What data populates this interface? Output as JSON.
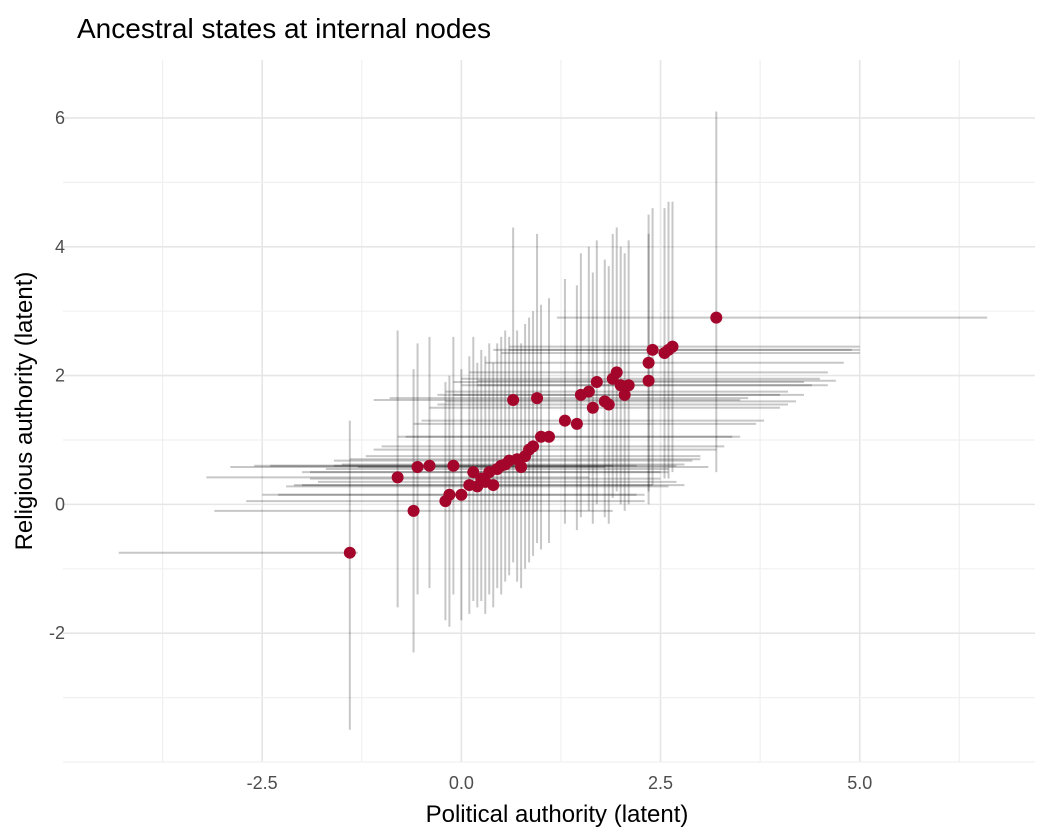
{
  "chart_data": {
    "type": "scatter",
    "title": "Ancestral states at internal nodes",
    "xlabel": "Political authority (latent)",
    "ylabel": "Religious authority (latent)",
    "xlim": [
      -5,
      7.2
    ],
    "ylim": [
      -4,
      6.9
    ],
    "x_ticks": [
      -2.5,
      0.0,
      2.5,
      5.0
    ],
    "x_tick_labels": [
      "-2.5",
      "0.0",
      "2.5",
      "5.0"
    ],
    "y_ticks": [
      -2,
      0,
      2,
      4,
      6
    ],
    "y_tick_labels": [
      "-2",
      "0",
      "2",
      "4",
      "6"
    ],
    "grid": true,
    "colors": {
      "point": "#a3062a",
      "error_bar": "#000000",
      "grid": "#e6e6e6"
    },
    "points": [
      {
        "x": -1.4,
        "y": -0.75,
        "xlo": -4.3,
        "xhi": -1.3,
        "ylo": -3.5,
        "yhi": 1.3
      },
      {
        "x": -0.8,
        "y": 0.42,
        "xlo": -3.2,
        "xhi": 1.6,
        "ylo": -1.6,
        "yhi": 2.7
      },
      {
        "x": -0.6,
        "y": -0.1,
        "xlo": -3.1,
        "xhi": 1.9,
        "ylo": -2.3,
        "yhi": 2.1
      },
      {
        "x": -0.55,
        "y": 0.58,
        "xlo": -2.9,
        "xhi": 1.8,
        "ylo": -1.4,
        "yhi": 2.5
      },
      {
        "x": -0.4,
        "y": 0.6,
        "xlo": -2.6,
        "xhi": 1.9,
        "ylo": -1.3,
        "yhi": 2.6
      },
      {
        "x": -0.2,
        "y": 0.05,
        "xlo": -2.7,
        "xhi": 2.3,
        "ylo": -1.8,
        "yhi": 1.9
      },
      {
        "x": -0.1,
        "y": 0.6,
        "xlo": -2.4,
        "xhi": 2.2,
        "ylo": -1.4,
        "yhi": 2.6
      },
      {
        "x": -0.15,
        "y": 0.15,
        "xlo": -2.5,
        "xhi": 2.2,
        "ylo": -1.9,
        "yhi": 2.0
      },
      {
        "x": 0.0,
        "y": 0.15,
        "xlo": -2.3,
        "xhi": 2.3,
        "ylo": -1.8,
        "yhi": 2.1
      },
      {
        "x": 0.1,
        "y": 0.3,
        "xlo": -2.1,
        "xhi": 2.4,
        "ylo": -1.7,
        "yhi": 2.3
      },
      {
        "x": 0.15,
        "y": 0.5,
        "xlo": -2.0,
        "xhi": 2.5,
        "ylo": -1.5,
        "yhi": 2.6
      },
      {
        "x": 0.2,
        "y": 0.28,
        "xlo": -2.2,
        "xhi": 2.6,
        "ylo": -1.6,
        "yhi": 2.2
      },
      {
        "x": 0.25,
        "y": 0.4,
        "xlo": -1.9,
        "xhi": 2.5,
        "ylo": -1.5,
        "yhi": 2.4
      },
      {
        "x": 0.3,
        "y": 0.35,
        "xlo": -1.8,
        "xhi": 2.7,
        "ylo": -1.7,
        "yhi": 2.3
      },
      {
        "x": 0.35,
        "y": 0.5,
        "xlo": -1.9,
        "xhi": 2.6,
        "ylo": -1.4,
        "yhi": 2.5
      },
      {
        "x": 0.4,
        "y": 0.3,
        "xlo": -2.0,
        "xhi": 2.8,
        "ylo": -1.6,
        "yhi": 2.2
      },
      {
        "x": 0.45,
        "y": 0.55,
        "xlo": -1.7,
        "xhi": 2.6,
        "ylo": -1.3,
        "yhi": 2.5
      },
      {
        "x": 0.5,
        "y": 0.6,
        "xlo": -1.6,
        "xhi": 2.7,
        "ylo": -1.4,
        "yhi": 2.6
      },
      {
        "x": 0.55,
        "y": 0.62,
        "xlo": -1.5,
        "xhi": 2.8,
        "ylo": -1.2,
        "yhi": 2.7
      },
      {
        "x": 0.6,
        "y": 0.68,
        "xlo": -1.6,
        "xhi": 2.9,
        "ylo": -1.1,
        "yhi": 2.6
      },
      {
        "x": 0.65,
        "y": 1.62,
        "xlo": -1.1,
        "xhi": 3.5,
        "ylo": -0.9,
        "yhi": 4.3
      },
      {
        "x": 0.7,
        "y": 0.7,
        "xlo": -1.4,
        "xhi": 3.0,
        "ylo": -1.2,
        "yhi": 2.7
      },
      {
        "x": 0.75,
        "y": 0.58,
        "xlo": -1.3,
        "xhi": 3.1,
        "ylo": -1.3,
        "yhi": 2.5
      },
      {
        "x": 0.8,
        "y": 0.75,
        "xlo": -1.2,
        "xhi": 3.0,
        "ylo": -1.0,
        "yhi": 2.8
      },
      {
        "x": 0.85,
        "y": 0.85,
        "xlo": -1.1,
        "xhi": 3.2,
        "ylo": -0.9,
        "yhi": 2.9
      },
      {
        "x": 0.9,
        "y": 0.9,
        "xlo": -1.0,
        "xhi": 3.3,
        "ylo": -0.8,
        "yhi": 3.0
      },
      {
        "x": 0.95,
        "y": 1.65,
        "xlo": -0.9,
        "xhi": 3.6,
        "ylo": -0.6,
        "yhi": 4.2
      },
      {
        "x": 1.0,
        "y": 1.05,
        "xlo": -0.8,
        "xhi": 3.4,
        "ylo": -0.7,
        "yhi": 3.1
      },
      {
        "x": 1.1,
        "y": 1.05,
        "xlo": -0.7,
        "xhi": 3.5,
        "ylo": -0.6,
        "yhi": 3.2
      },
      {
        "x": 1.3,
        "y": 1.3,
        "xlo": -0.5,
        "xhi": 3.8,
        "ylo": -0.3,
        "yhi": 3.5
      },
      {
        "x": 1.45,
        "y": 1.25,
        "xlo": -0.6,
        "xhi": 3.7,
        "ylo": -0.4,
        "yhi": 3.4
      },
      {
        "x": 1.5,
        "y": 1.7,
        "xlo": -0.3,
        "xhi": 4.0,
        "ylo": -0.2,
        "yhi": 3.9
      },
      {
        "x": 1.6,
        "y": 1.75,
        "xlo": -0.2,
        "xhi": 4.1,
        "ylo": -0.1,
        "yhi": 4.0
      },
      {
        "x": 1.65,
        "y": 1.5,
        "xlo": -0.4,
        "xhi": 4.0,
        "ylo": -0.3,
        "yhi": 3.6
      },
      {
        "x": 1.7,
        "y": 1.9,
        "xlo": -0.1,
        "xhi": 4.3,
        "ylo": 0.0,
        "yhi": 4.1
      },
      {
        "x": 1.8,
        "y": 1.6,
        "xlo": -0.2,
        "xhi": 4.2,
        "ylo": -0.2,
        "yhi": 3.8
      },
      {
        "x": 1.85,
        "y": 1.55,
        "xlo": -0.3,
        "xhi": 4.1,
        "ylo": -0.3,
        "yhi": 3.7
      },
      {
        "x": 1.9,
        "y": 1.95,
        "xlo": 0.0,
        "xhi": 4.5,
        "ylo": 0.1,
        "yhi": 4.2
      },
      {
        "x": 1.95,
        "y": 2.05,
        "xlo": 0.1,
        "xhi": 4.6,
        "ylo": 0.2,
        "yhi": 4.3
      },
      {
        "x": 2.0,
        "y": 1.85,
        "xlo": 0.0,
        "xhi": 4.4,
        "ylo": 0.0,
        "yhi": 4.0
      },
      {
        "x": 2.05,
        "y": 1.7,
        "xlo": -0.1,
        "xhi": 4.3,
        "ylo": -0.1,
        "yhi": 3.9
      },
      {
        "x": 2.1,
        "y": 1.85,
        "xlo": 0.2,
        "xhi": 4.6,
        "ylo": 0.0,
        "yhi": 4.1
      },
      {
        "x": 2.35,
        "y": 2.2,
        "xlo": 0.3,
        "xhi": 4.8,
        "ylo": 0.2,
        "yhi": 4.5
      },
      {
        "x": 2.35,
        "y": 1.92,
        "xlo": 0.2,
        "xhi": 4.7,
        "ylo": 0.0,
        "yhi": 4.2
      },
      {
        "x": 2.4,
        "y": 2.4,
        "xlo": 0.4,
        "xhi": 4.9,
        "ylo": 0.3,
        "yhi": 4.6
      },
      {
        "x": 2.55,
        "y": 2.35,
        "xlo": 0.5,
        "xhi": 5.0,
        "ylo": 0.4,
        "yhi": 4.6
      },
      {
        "x": 2.6,
        "y": 2.4,
        "xlo": 0.6,
        "xhi": 5.0,
        "ylo": 0.4,
        "yhi": 4.7
      },
      {
        "x": 2.65,
        "y": 2.45,
        "xlo": 0.6,
        "xhi": 5.0,
        "ylo": 0.5,
        "yhi": 4.7
      },
      {
        "x": 3.2,
        "y": 2.9,
        "xlo": 1.2,
        "xhi": 6.6,
        "ylo": 0.5,
        "yhi": 6.1
      }
    ]
  }
}
